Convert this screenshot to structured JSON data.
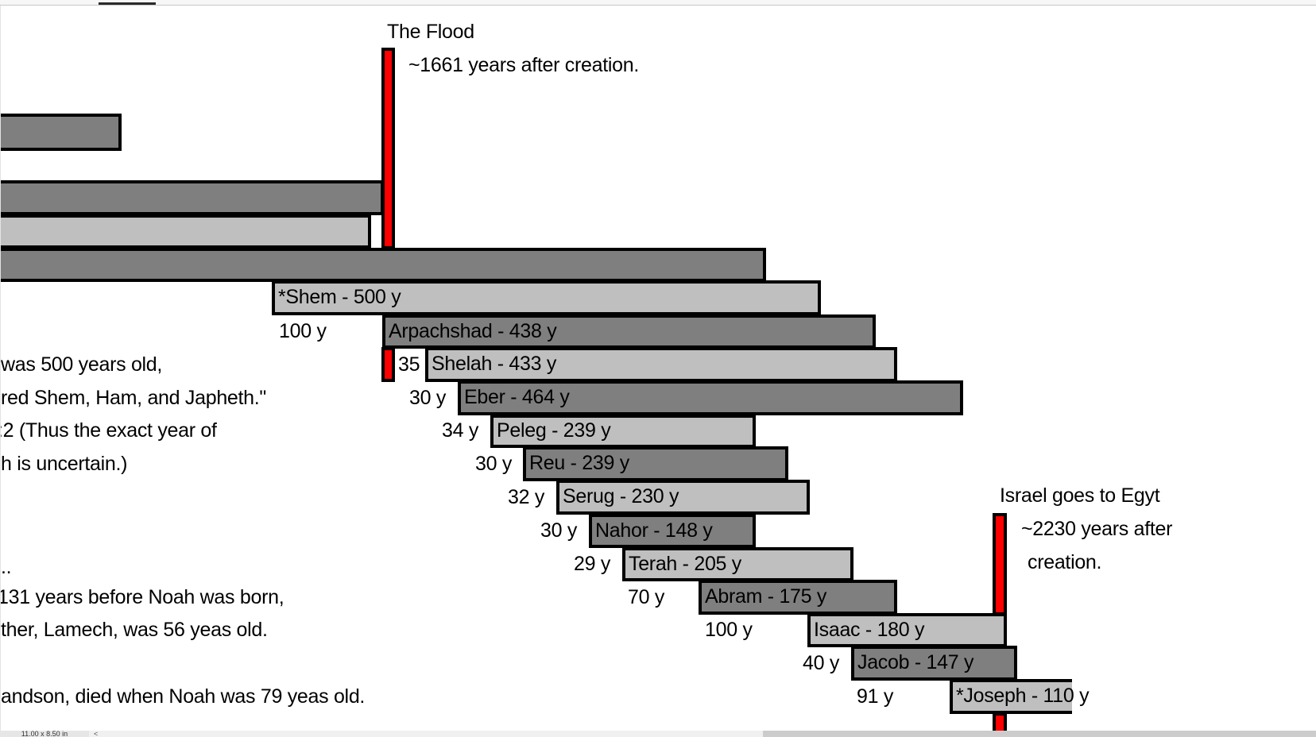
{
  "events": {
    "flood": {
      "title": "The Flood",
      "subtitle": "~1661 years after creation."
    },
    "egypt": {
      "title": "Israel goes to Egyt",
      "line1": "~2230 years after",
      "line2": "creation."
    }
  },
  "bars": [
    {
      "id": "bar-unlabeled-1",
      "label": "",
      "shade": "dark"
    },
    {
      "id": "bar-unlabeled-2",
      "label": "",
      "shade": "dark"
    },
    {
      "id": "bar-unlabeled-3",
      "label": "",
      "shade": "light"
    },
    {
      "id": "bar-unlabeled-4",
      "label": "",
      "shade": "dark"
    },
    {
      "id": "shem",
      "label": "*Shem - 500 y",
      "shade": "light"
    },
    {
      "id": "arpachshad",
      "label": "Arpachshad - 438 y",
      "shade": "dark"
    },
    {
      "id": "shelah",
      "label": "Shelah - 433 y",
      "shade": "light"
    },
    {
      "id": "eber",
      "label": "Eber - 464 y",
      "shade": "dark"
    },
    {
      "id": "peleg",
      "label": "Peleg - 239 y",
      "shade": "light"
    },
    {
      "id": "reu",
      "label": "Reu - 239 y",
      "shade": "dark"
    },
    {
      "id": "serug",
      "label": "Serug - 230 y",
      "shade": "light"
    },
    {
      "id": "nahor",
      "label": "Nahor - 148 y",
      "shade": "dark"
    },
    {
      "id": "terah",
      "label": "Terah - 205 y",
      "shade": "light"
    },
    {
      "id": "abram",
      "label": "Abram - 175 y",
      "shade": "dark"
    },
    {
      "id": "isaac",
      "label": "Isaac - 180 y",
      "shade": "light"
    },
    {
      "id": "jacob",
      "label": "Jacob - 147 y",
      "shade": "dark"
    },
    {
      "id": "joseph",
      "label": "*Joseph - 110 y",
      "shade": "light"
    }
  ],
  "gaps": {
    "shem_to_arpachshad": "100 y",
    "arpachshad_to_shelah": "35",
    "shelah_to_eber": "30 y",
    "eber_to_peleg": "34 y",
    "peleg_to_reu": "30 y",
    "reu_to_serug": "32 y",
    "serug_to_nahor": "30 y",
    "nahor_to_terah": "29 y",
    "terah_to_abram": "70 y",
    "abram_to_isaac": "100 y",
    "isaac_to_jacob": "40 y",
    "jacob_to_joseph": "91 y"
  },
  "notes": [
    " was 500 years old,",
    "red Shem, Ham, and Japheth.\"",
    ":2 (Thus the exact year of",
    "h is uncertain.)",
    "..",
    "131 years before Noah was born,",
    "ther, Lamech, was 56 yeas old.",
    "andson, died when Noah was 79 yeas old."
  ],
  "colors": {
    "dark": "#7f7f7f",
    "light": "#bfbfbf",
    "event": "#ff0000"
  },
  "statusbar": {
    "page_size": "11.00 x 8.50 in",
    "scroll_left": "<"
  }
}
